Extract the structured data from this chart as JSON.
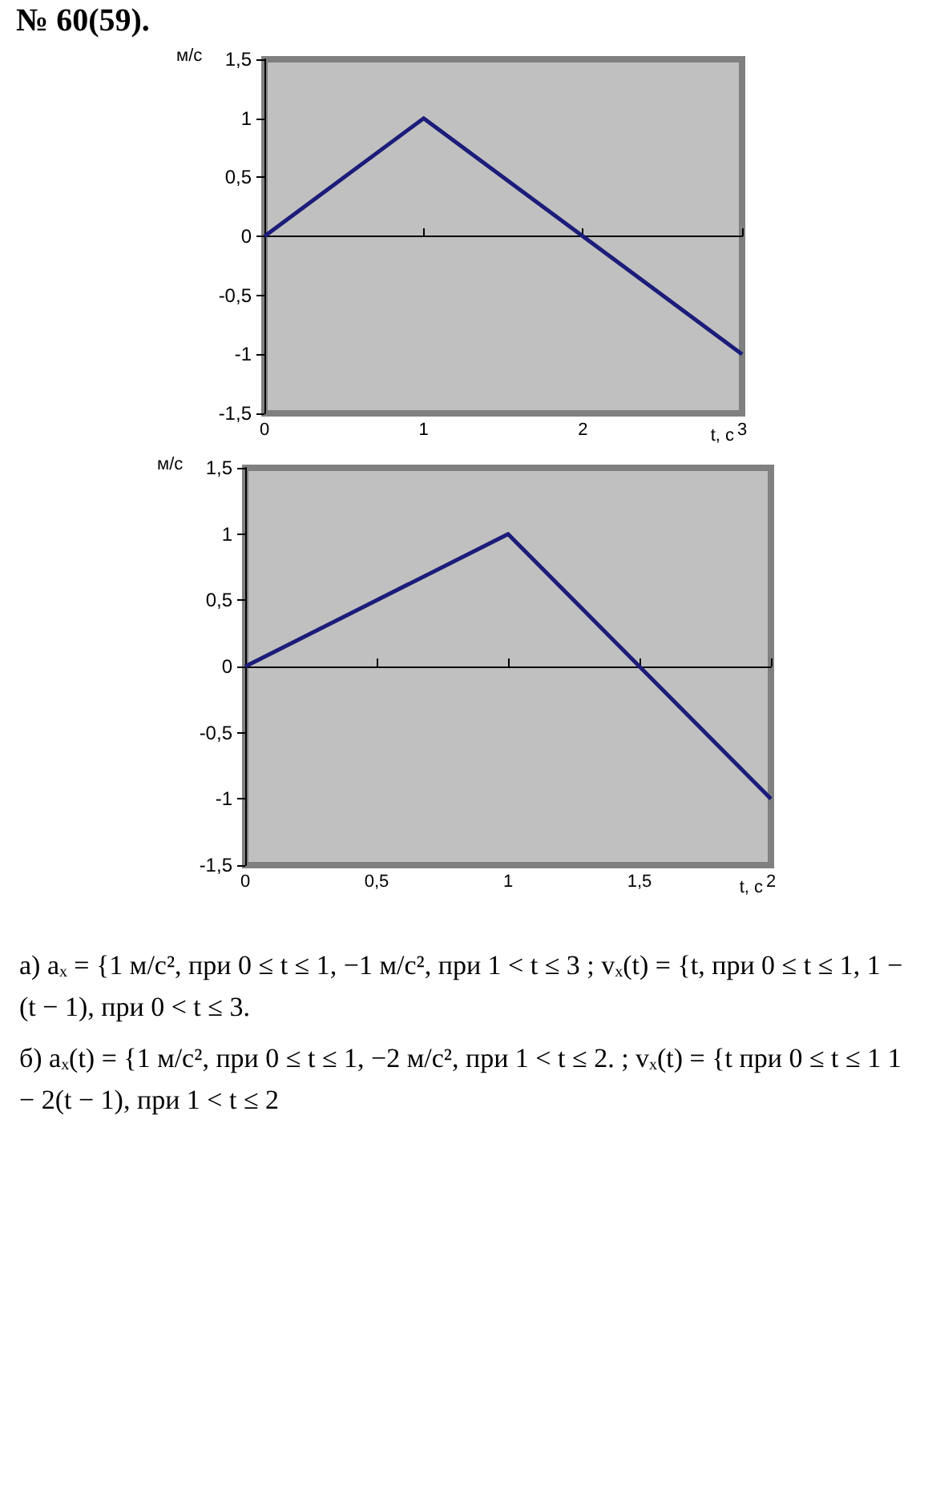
{
  "chart_data": [
    {
      "type": "line",
      "title": "№ 60(59).",
      "xlabel": "t, с",
      "ylabel": "м/с",
      "x": [
        0,
        1,
        3
      ],
      "values": [
        0,
        1,
        -1
      ],
      "color": "#1c1c7a",
      "marker": "none",
      "xlim": [
        0,
        3
      ],
      "xticks": [
        0,
        1,
        2,
        3
      ],
      "ylim": [
        -1.5,
        1.5
      ],
      "yticks": [
        {
          "value": -1.5,
          "label": "-1,5"
        },
        -1,
        {
          "value": -0.5,
          "label": "-0,5"
        },
        0,
        {
          "value": 0.5,
          "label": "0,5"
        },
        1,
        {
          "value": 1.5,
          "label": "1,5"
        }
      ]
    },
    {
      "type": "line",
      "xlabel": "t, с",
      "ylabel": "м/с",
      "x": [
        0,
        1,
        2
      ],
      "values": [
        0,
        1,
        -1
      ],
      "color": "#1c1c7a",
      "marker": "none",
      "xlim": [
        0,
        2
      ],
      "xticks": [
        0,
        {
          "value": 0.5,
          "label": "0,5"
        },
        1,
        {
          "value": 1.5,
          "label": "1,5"
        },
        2
      ],
      "ylim": [
        -1.5,
        1.5
      ],
      "yticks": [
        {
          "value": -1.5,
          "label": "-1,5"
        },
        -1,
        {
          "value": -0.5,
          "label": "-0,5"
        },
        0,
        {
          "value": 0.5,
          "label": "0,5"
        },
        1,
        {
          "value": 1.5,
          "label": "1,5"
        }
      ],
      "annotations": [
        "а) aₓ = {1 м/с², при 0 ≤ t ≤ 1, −1 м/с², при 1 < t ≤ 3 ; vₓ(t) = {t, при 0 ≤ t ≤ 1, 1 − (t − 1), при 0 < t ≤ 3.",
        "б) aₓ(t) = {1 м/с², при 0 ≤ t ≤ 1, −2 м/с², при 1 < t ≤ 2. ; vₓ(t) = {t при 0 ≤ t ≤ 1 1 − 2(t − 1), при 1 < t ≤ 2"
      ]
    }
  ]
}
